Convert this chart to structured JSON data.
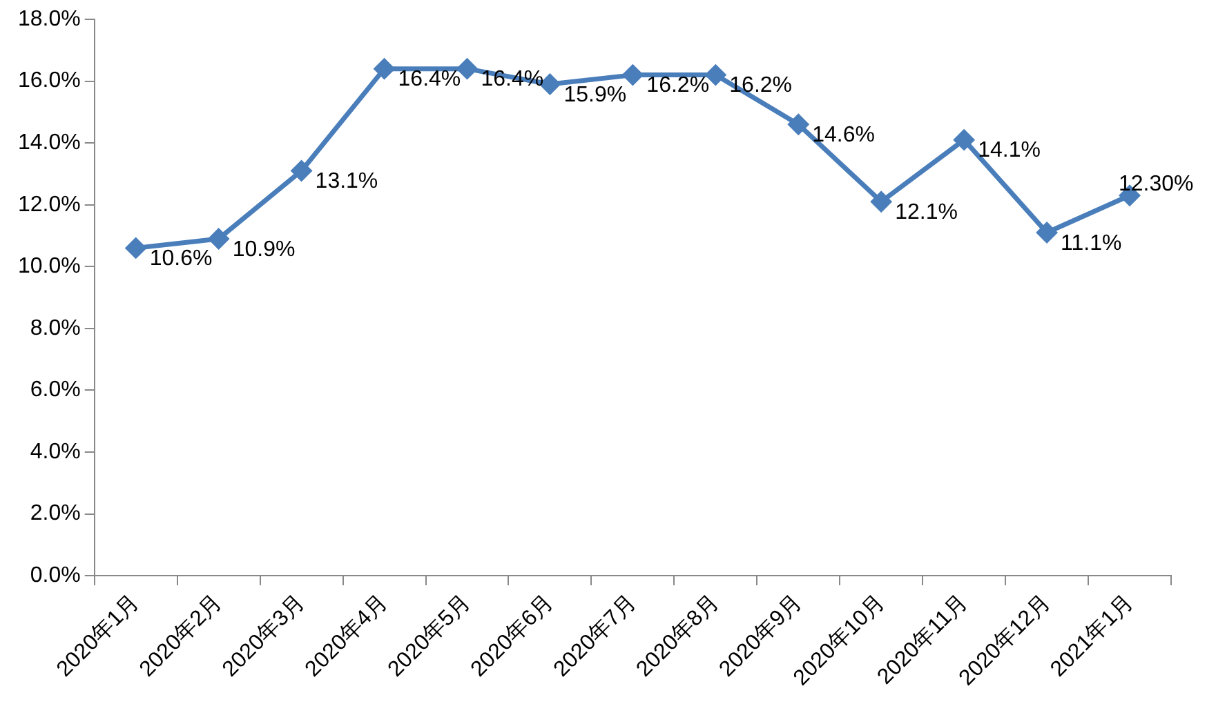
{
  "chart_data": {
    "type": "line",
    "categories": [
      "2020年1月",
      "2020年2月",
      "2020年3月",
      "2020年4月",
      "2020年5月",
      "2020年6月",
      "2020年7月",
      "2020年8月",
      "2020年9月",
      "2020年10月",
      "2020年11月",
      "2020年12月",
      "2021年1月"
    ],
    "series": [
      {
        "color": "#4a7ebb",
        "values": [
          10.6,
          10.9,
          13.1,
          16.4,
          16.4,
          15.9,
          16.2,
          16.2,
          14.6,
          12.1,
          14.1,
          11.1,
          12.3
        ],
        "value_labels": [
          "10.6%",
          "10.9%",
          "13.1%",
          "16.4%",
          "16.4%",
          "15.9%",
          "16.2%",
          "16.2%",
          "14.6%",
          "12.1%",
          "14.1%",
          "11.1%",
          "12.30%"
        ]
      }
    ],
    "ylim": [
      0,
      18
    ],
    "yticks": [
      {
        "value": 0,
        "label": "0.0%"
      },
      {
        "value": 2,
        "label": "2.0%"
      },
      {
        "value": 4,
        "label": "4.0%"
      },
      {
        "value": 6,
        "label": "6.0%"
      },
      {
        "value": 8,
        "label": "8.0%"
      },
      {
        "value": 10,
        "label": "10.0%"
      },
      {
        "value": 12,
        "label": "12.0%"
      },
      {
        "value": 14,
        "label": "14.0%"
      },
      {
        "value": 16,
        "label": "16.0%"
      },
      {
        "value": 18,
        "label": "18.0%"
      }
    ],
    "grid": false,
    "legend": false,
    "marker": "diamond",
    "line_style": "solid"
  }
}
